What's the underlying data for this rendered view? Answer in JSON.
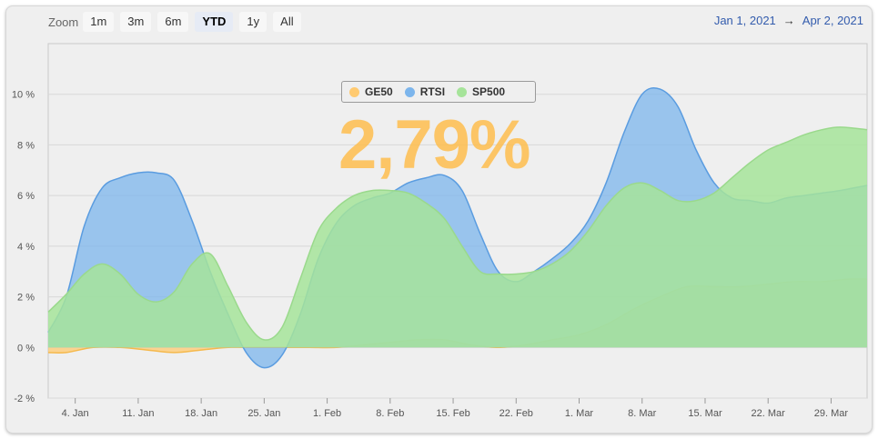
{
  "zoom": {
    "label": "Zoom",
    "buttons": [
      "1m",
      "3m",
      "6m",
      "YTD",
      "1y",
      "All"
    ],
    "selected": "YTD"
  },
  "range": {
    "from": "Jan 1, 2021",
    "arrow": "→",
    "to": "Apr 2, 2021"
  },
  "big_value": "2,79%",
  "colors": {
    "GE50": "#ffca70",
    "RTSI": "#7cb5ec",
    "SP500": "#a6e49a"
  },
  "chart_data": {
    "type": "area",
    "title": "",
    "xlabel": "",
    "ylabel": "",
    "x_range": [
      1,
      92
    ],
    "ylim": [
      -2,
      12
    ],
    "y_ticks": [
      -2,
      0,
      2,
      4,
      6,
      8,
      10
    ],
    "y_tick_labels": [
      "-2 %",
      "0 %",
      "2 %",
      "4 %",
      "6 %",
      "8 %",
      "10 %"
    ],
    "x_ticks": [
      4,
      11,
      18,
      25,
      32,
      39,
      46,
      53,
      60,
      67,
      74,
      81,
      88
    ],
    "x_tick_labels": [
      "4. Jan",
      "11. Jan",
      "18. Jan",
      "25. Jan",
      "1. Feb",
      "8. Feb",
      "15. Feb",
      "22. Feb",
      "1. Mar",
      "8. Mar",
      "15. Mar",
      "22. Mar",
      "29. Mar"
    ],
    "legend": [
      "GE50",
      "RTSI",
      "SP500"
    ],
    "series": [
      {
        "name": "GE50",
        "x": [
          1,
          3,
          6,
          9,
          12,
          15,
          18,
          21,
          24,
          27,
          30,
          33,
          36,
          39,
          42,
          45,
          48,
          51,
          54,
          57,
          60,
          63,
          66,
          69,
          72,
          75,
          78,
          81,
          84,
          87,
          90,
          92
        ],
        "values": [
          -0.2,
          -0.2,
          0.0,
          0.0,
          -0.1,
          -0.2,
          -0.1,
          0.0,
          0.0,
          0.0,
          0.0,
          0.0,
          0.1,
          0.2,
          0.3,
          0.3,
          0.1,
          0.0,
          0.1,
          0.3,
          0.5,
          0.9,
          1.5,
          2.0,
          2.4,
          2.4,
          2.4,
          2.5,
          2.6,
          2.6,
          2.7,
          2.7
        ]
      },
      {
        "name": "RTSI",
        "x": [
          1,
          3,
          5,
          7,
          9,
          11,
          13,
          15,
          17,
          19,
          21,
          23,
          25,
          27,
          29,
          31,
          33,
          35,
          37,
          39,
          41,
          43,
          45,
          47,
          49,
          51,
          53,
          55,
          57,
          59,
          61,
          63,
          65,
          67,
          69,
          71,
          73,
          75,
          77,
          79,
          81,
          83,
          85,
          87,
          89,
          92
        ],
        "values": [
          0.6,
          2.0,
          4.8,
          6.3,
          6.7,
          6.9,
          6.9,
          6.6,
          5.0,
          3.0,
          1.3,
          -0.2,
          -0.8,
          -0.3,
          1.3,
          3.5,
          4.9,
          5.6,
          5.9,
          6.1,
          6.5,
          6.7,
          6.8,
          6.2,
          4.5,
          3.0,
          2.6,
          3.0,
          3.5,
          4.1,
          5.0,
          6.5,
          8.5,
          10.0,
          10.2,
          9.5,
          7.8,
          6.5,
          5.9,
          5.8,
          5.7,
          5.9,
          6.0,
          6.1,
          6.2,
          6.4
        ]
      },
      {
        "name": "SP500",
        "x": [
          1,
          3,
          5,
          7,
          9,
          11,
          13,
          15,
          17,
          19,
          21,
          23,
          25,
          27,
          29,
          31,
          33,
          35,
          37,
          39,
          41,
          43,
          45,
          47,
          49,
          51,
          53,
          55,
          57,
          59,
          61,
          63,
          65,
          67,
          69,
          71,
          73,
          75,
          77,
          79,
          81,
          83,
          85,
          87,
          89,
          92
        ],
        "values": [
          1.4,
          2.1,
          2.9,
          3.3,
          2.9,
          2.1,
          1.8,
          2.2,
          3.3,
          3.7,
          2.4,
          1.0,
          0.3,
          0.8,
          2.7,
          4.6,
          5.5,
          6.0,
          6.2,
          6.2,
          6.1,
          5.7,
          5.1,
          4.0,
          3.0,
          2.9,
          2.9,
          3.0,
          3.3,
          3.8,
          4.6,
          5.6,
          6.3,
          6.5,
          6.2,
          5.8,
          5.8,
          6.1,
          6.7,
          7.3,
          7.8,
          8.1,
          8.4,
          8.6,
          8.7,
          8.6
        ]
      }
    ]
  }
}
